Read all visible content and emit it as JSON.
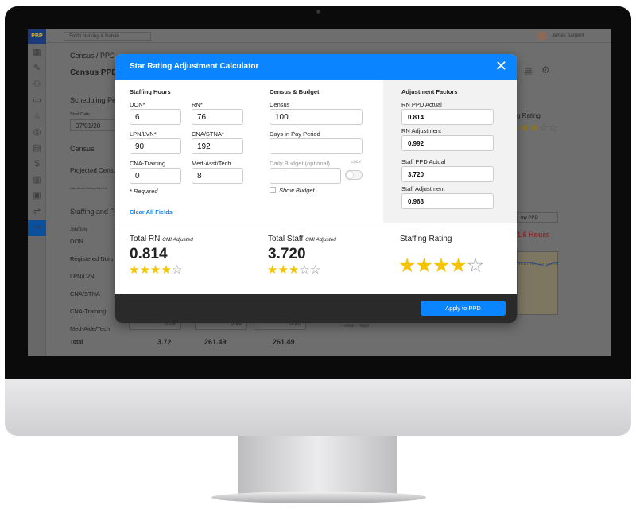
{
  "app": {
    "logo": "PBP",
    "facility": "Smith Nursing & Rehab",
    "user": "James Sargent",
    "breadcrumb": "Census / PPD",
    "page_title": "Census PPD",
    "scheduling_period": "Scheduling Per",
    "start_date_label": "Start Date",
    "start_date": "07/01/20",
    "census": "Census",
    "projected_census": "Projected Censu",
    "load_current": "Load current Census from Poi",
    "staffing_and_ppd": "Staffing and PP",
    "job_duty": "Job/Duty",
    "rows": [
      "DON",
      "Registered Nurs",
      "LPN/LVN",
      "CNA/STNA",
      "CNA-Training",
      "Med-Aide/Tech"
    ],
    "med_aide_values": [
      "0.08",
      "0.96",
      "0.96"
    ],
    "total_label": "Total",
    "totals": [
      "3.72",
      "261.49",
      "261.49"
    ],
    "rating_label": "g Rating",
    "rating_stars": 3,
    "view_select": "ow PPD",
    "hours": "1.6 Hours",
    "legend": [
      "Actual",
      "Target"
    ],
    "sidebar_icons": [
      "calendar-icon",
      "wrench-icon",
      "users-icon",
      "briefcase-icon",
      "star-icon",
      "location-icon",
      "chat-icon",
      "dollar-icon",
      "bar-chart-icon",
      "badge-icon",
      "bed-icon",
      "logout-icon"
    ]
  },
  "modal": {
    "title": "Star Rating Adjustment Calculator",
    "staffing": {
      "heading": "Staffing Hours",
      "fields": [
        {
          "label": "DON*",
          "value": "6"
        },
        {
          "label": "RN*",
          "value": "76"
        },
        {
          "label": "LPN/LVN*",
          "value": "90"
        },
        {
          "label": "CNA/STNA*",
          "value": "192"
        },
        {
          "label": "CNA-Training",
          "value": "0"
        },
        {
          "label": "Med-Asst/Tech",
          "value": "8"
        }
      ],
      "required_note": "* Required",
      "clear": "Clear All Fields"
    },
    "census_budget": {
      "heading": "Census & Budget",
      "census_label": "Census",
      "census_value": "100",
      "days_label": "Days in Pay Period",
      "days_value": "",
      "budget_label": "Daily Budget (optional)",
      "budget_value": "",
      "lock_label": "Lock",
      "show_budget": "Show Budget"
    },
    "adjustment": {
      "heading": "Adjustment Factors",
      "fields": [
        {
          "label": "RN PPD Actual",
          "value": "0.814"
        },
        {
          "label": "RN Adjustment",
          "value": "0.992"
        },
        {
          "label": "Staff PPD Actual",
          "value": "3.720"
        },
        {
          "label": "Staff Adjustment",
          "value": "0.963"
        }
      ]
    },
    "results": {
      "rn_label": "Total RN",
      "rn_sub": "CMI Adjusted",
      "rn_value": "0.814",
      "rn_stars": 4,
      "staff_label": "Total Staff",
      "staff_sub": "CMI Adjusted",
      "staff_value": "3.720",
      "staff_stars": 3,
      "rating_label": "Staffing Rating",
      "rating_stars": 4
    },
    "apply": "Apply to PPD"
  },
  "colors": {
    "accent": "#0a84ff",
    "star": "#f5c400",
    "footer": "#2b2a2b"
  }
}
